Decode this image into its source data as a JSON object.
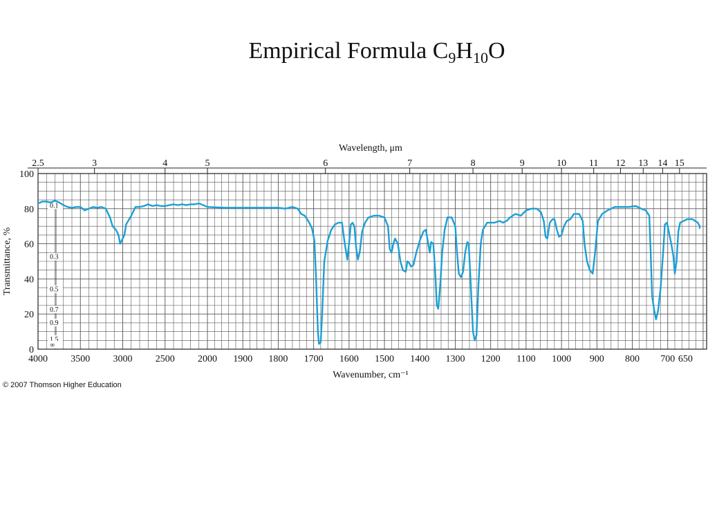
{
  "slide": {
    "title_main": "Empirical Formula C",
    "title_sub1": "9",
    "title_mid": "H",
    "title_sub2": "10",
    "title_end": "O"
  },
  "footer": {
    "copyright": "© 2007 Thomson Higher Education"
  },
  "colors": {
    "spectrum": "#1a9fd6",
    "grid": "#555555"
  },
  "chart_data": {
    "type": "line",
    "title": "",
    "xlabel": "Wavenumber, cm⁻¹",
    "x2label": "Wavelength, μm",
    "ylabel": "Transmittance, %",
    "xlim": [
      4000,
      600
    ],
    "ylim": [
      0,
      100
    ],
    "grid": true,
    "x_ticks": [
      {
        "v": 4000,
        "label": "4000"
      },
      {
        "v": 3500,
        "label": "3500"
      },
      {
        "v": 3000,
        "label": "3000"
      },
      {
        "v": 2500,
        "label": "2500"
      },
      {
        "v": 2000,
        "label": "2000"
      },
      {
        "v": 1900,
        "label": "1900"
      },
      {
        "v": 1800,
        "label": "1800"
      },
      {
        "v": 1700,
        "label": "1700"
      },
      {
        "v": 1600,
        "label": "1600"
      },
      {
        "v": 1500,
        "label": "1500"
      },
      {
        "v": 1400,
        "label": "1400"
      },
      {
        "v": 1300,
        "label": "1300"
      },
      {
        "v": 1200,
        "label": "1200"
      },
      {
        "v": 1100,
        "label": "1100"
      },
      {
        "v": 1000,
        "label": "1000"
      },
      {
        "v": 900,
        "label": "900"
      },
      {
        "v": 800,
        "label": "800"
      },
      {
        "v": 700,
        "label": "700"
      },
      {
        "v": 650,
        "label": "650"
      }
    ],
    "x2_ticks": [
      {
        "v": 2.5,
        "label": "2.5"
      },
      {
        "v": 3,
        "label": "3"
      },
      {
        "v": 4,
        "label": "4"
      },
      {
        "v": 5,
        "label": "5"
      },
      {
        "v": 6,
        "label": "6"
      },
      {
        "v": 7,
        "label": "7"
      },
      {
        "v": 8,
        "label": "8"
      },
      {
        "v": 9,
        "label": "9"
      },
      {
        "v": 10,
        "label": "10"
      },
      {
        "v": 11,
        "label": "11"
      },
      {
        "v": 12,
        "label": "12"
      },
      {
        "v": 13,
        "label": "13"
      },
      {
        "v": 14,
        "label": "14"
      },
      {
        "v": 15,
        "label": "15"
      }
    ],
    "y_ticks": [
      {
        "v": 0,
        "label": "0"
      },
      {
        "v": 20,
        "label": "20"
      },
      {
        "v": 40,
        "label": "40"
      },
      {
        "v": 60,
        "label": "60"
      },
      {
        "v": 80,
        "label": "80"
      },
      {
        "v": 100,
        "label": "100"
      }
    ],
    "absorbance_labels": [
      {
        "t": 79.4,
        "label": "0.1"
      },
      {
        "t": 50.1,
        "label": "0.3"
      },
      {
        "t": 31.6,
        "label": "0.5"
      },
      {
        "t": 20.0,
        "label": "0.7"
      },
      {
        "t": 12.6,
        "label": "0.9"
      },
      {
        "t": 3.2,
        "label": "1.5"
      },
      {
        "t": 0,
        "label": "∞"
      }
    ],
    "series": [
      {
        "points": [
          [
            4000,
            83
          ],
          [
            3950,
            84
          ],
          [
            3900,
            84
          ],
          [
            3850,
            83.5
          ],
          [
            3800,
            84.5
          ],
          [
            3750,
            83.5
          ],
          [
            3700,
            82
          ],
          [
            3650,
            81
          ],
          [
            3600,
            80.5
          ],
          [
            3550,
            81
          ],
          [
            3500,
            81
          ],
          [
            3450,
            79
          ],
          [
            3400,
            80
          ],
          [
            3350,
            81
          ],
          [
            3300,
            80.5
          ],
          [
            3250,
            81
          ],
          [
            3200,
            80
          ],
          [
            3150,
            75
          ],
          [
            3120,
            70
          ],
          [
            3080,
            68
          ],
          [
            3050,
            65
          ],
          [
            3030,
            60
          ],
          [
            3000,
            63
          ],
          [
            2980,
            65
          ],
          [
            2960,
            71
          ],
          [
            2900,
            76
          ],
          [
            2850,
            81
          ],
          [
            2800,
            81
          ],
          [
            2750,
            81.5
          ],
          [
            2700,
            82.5
          ],
          [
            2650,
            81.5
          ],
          [
            2600,
            82
          ],
          [
            2550,
            81.5
          ],
          [
            2500,
            81.5
          ],
          [
            2450,
            82
          ],
          [
            2400,
            82.5
          ],
          [
            2350,
            82
          ],
          [
            2300,
            82.5
          ],
          [
            2250,
            82
          ],
          [
            2200,
            82.5
          ],
          [
            2150,
            82.5
          ],
          [
            2100,
            83
          ],
          [
            2050,
            82
          ],
          [
            2000,
            81
          ],
          [
            1950,
            80.5
          ],
          [
            1900,
            80.5
          ],
          [
            1850,
            80.5
          ],
          [
            1820,
            80.5
          ],
          [
            1800,
            80.5
          ],
          [
            1780,
            80
          ],
          [
            1760,
            81
          ],
          [
            1745,
            80
          ],
          [
            1735,
            77
          ],
          [
            1725,
            76
          ],
          [
            1715,
            73
          ],
          [
            1705,
            69
          ],
          [
            1698,
            62
          ],
          [
            1693,
            40
          ],
          [
            1688,
            10
          ],
          [
            1685,
            3
          ],
          [
            1680,
            4
          ],
          [
            1676,
            20
          ],
          [
            1670,
            50
          ],
          [
            1660,
            62
          ],
          [
            1650,
            68
          ],
          [
            1640,
            71
          ],
          [
            1630,
            72
          ],
          [
            1620,
            72
          ],
          [
            1612,
            60
          ],
          [
            1605,
            51
          ],
          [
            1600,
            60
          ],
          [
            1595,
            71
          ],
          [
            1590,
            72
          ],
          [
            1585,
            70
          ],
          [
            1580,
            58
          ],
          [
            1575,
            51
          ],
          [
            1570,
            55
          ],
          [
            1563,
            67
          ],
          [
            1555,
            72
          ],
          [
            1545,
            75
          ],
          [
            1530,
            76
          ],
          [
            1515,
            76
          ],
          [
            1500,
            75
          ],
          [
            1490,
            70
          ],
          [
            1485,
            57
          ],
          [
            1480,
            55
          ],
          [
            1475,
            60
          ],
          [
            1470,
            63
          ],
          [
            1462,
            60
          ],
          [
            1455,
            50
          ],
          [
            1448,
            45
          ],
          [
            1440,
            44
          ],
          [
            1435,
            50
          ],
          [
            1430,
            49
          ],
          [
            1425,
            47
          ],
          [
            1418,
            48
          ],
          [
            1410,
            55
          ],
          [
            1400,
            62
          ],
          [
            1390,
            67
          ],
          [
            1383,
            68
          ],
          [
            1378,
            62
          ],
          [
            1372,
            55
          ],
          [
            1368,
            61
          ],
          [
            1362,
            60
          ],
          [
            1357,
            45
          ],
          [
            1352,
            25
          ],
          [
            1348,
            23
          ],
          [
            1342,
            38
          ],
          [
            1337,
            55
          ],
          [
            1330,
            68
          ],
          [
            1322,
            75
          ],
          [
            1310,
            75
          ],
          [
            1300,
            70
          ],
          [
            1295,
            55
          ],
          [
            1290,
            43
          ],
          [
            1284,
            41
          ],
          [
            1278,
            44
          ],
          [
            1272,
            55
          ],
          [
            1266,
            61
          ],
          [
            1262,
            60
          ],
          [
            1257,
            40
          ],
          [
            1250,
            10
          ],
          [
            1245,
            5
          ],
          [
            1240,
            8
          ],
          [
            1235,
            35
          ],
          [
            1228,
            60
          ],
          [
            1222,
            68
          ],
          [
            1210,
            72
          ],
          [
            1190,
            72
          ],
          [
            1175,
            73
          ],
          [
            1165,
            72
          ],
          [
            1155,
            73
          ],
          [
            1145,
            75
          ],
          [
            1130,
            77
          ],
          [
            1115,
            76
          ],
          [
            1100,
            79
          ],
          [
            1085,
            80
          ],
          [
            1070,
            80
          ],
          [
            1058,
            78
          ],
          [
            1050,
            73
          ],
          [
            1045,
            64
          ],
          [
            1040,
            63
          ],
          [
            1033,
            72
          ],
          [
            1025,
            74
          ],
          [
            1020,
            74
          ],
          [
            1013,
            68
          ],
          [
            1007,
            64
          ],
          [
            1000,
            65
          ],
          [
            993,
            70
          ],
          [
            985,
            73
          ],
          [
            975,
            74
          ],
          [
            965,
            77
          ],
          [
            950,
            77
          ],
          [
            940,
            73
          ],
          [
            935,
            60
          ],
          [
            928,
            50
          ],
          [
            920,
            45
          ],
          [
            912,
            43
          ],
          [
            905,
            55
          ],
          [
            897,
            73
          ],
          [
            885,
            77
          ],
          [
            870,
            79
          ],
          [
            850,
            81
          ],
          [
            830,
            81
          ],
          [
            810,
            81
          ],
          [
            790,
            81.5
          ],
          [
            775,
            80
          ],
          [
            762,
            79
          ],
          [
            752,
            76
          ],
          [
            748,
            55
          ],
          [
            744,
            30
          ],
          [
            738,
            22
          ],
          [
            733,
            17
          ],
          [
            727,
            22
          ],
          [
            720,
            35
          ],
          [
            713,
            55
          ],
          [
            708,
            71
          ],
          [
            702,
            72
          ],
          [
            696,
            66
          ],
          [
            690,
            60
          ],
          [
            684,
            53
          ],
          [
            680,
            43
          ],
          [
            675,
            50
          ],
          [
            670,
            67
          ],
          [
            665,
            72
          ],
          [
            655,
            73
          ],
          [
            645,
            74
          ],
          [
            630,
            74
          ],
          [
            615,
            72
          ],
          [
            605,
            70
          ],
          [
            595,
            69
          ],
          [
            580,
            69
          ]
        ]
      }
    ]
  }
}
